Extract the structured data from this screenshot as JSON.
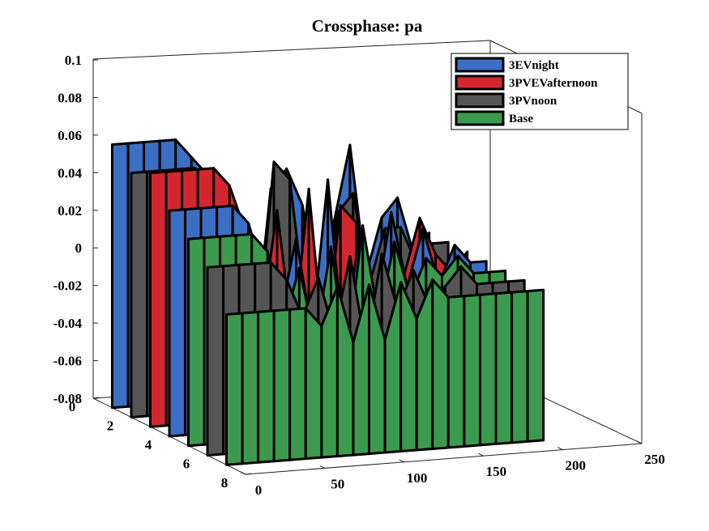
{
  "chart_data": {
    "type": "3d-waterfall",
    "title": "Crossphase: pa",
    "xlabel": "",
    "ylabel": "",
    "zlabel": "",
    "x_ticks": [
      "0",
      "50",
      "100",
      "150",
      "200",
      "250"
    ],
    "y_ticks": [
      "0",
      "2",
      "4",
      "6",
      "8"
    ],
    "z_ticks": [
      "0.1",
      "0.08",
      "0.06",
      "0.04",
      "0.02",
      "0",
      "-0.02",
      "-0.04",
      "-0.06",
      "-0.08"
    ],
    "xlim": [
      0,
      250
    ],
    "ylim": [
      0,
      8
    ],
    "zlim": [
      -0.08,
      0.1
    ],
    "grid": false,
    "legend_position": "top-right",
    "series": [
      {
        "name": "3EVnight",
        "color": "#3a6fc4"
      },
      {
        "name": "3PVEVafternoon",
        "color": "#d3272f"
      },
      {
        "name": "3PVnoon",
        "color": "#555555"
      },
      {
        "name": "Base",
        "color": "#3c9a4e"
      }
    ],
    "x": [
      0,
      10,
      20,
      30,
      40,
      50,
      60,
      70,
      80,
      90,
      100,
      110,
      120,
      130,
      140,
      150,
      160,
      170,
      180,
      190,
      200
    ],
    "slices": [
      {
        "y": 1,
        "series": "3EVnight",
        "z": [
          0.06,
          0.06,
          0.06,
          0.06,
          0.06,
          0.05,
          0.04,
          0.02,
          -0.02,
          -0.05,
          0.03,
          0.04,
          0.02,
          -0.03,
          0.01,
          0.05,
          -0.02,
          0.01,
          0.02,
          -0.01,
          0.0
        ]
      },
      {
        "y": 2,
        "series": "3PVnoon",
        "z": [
          0.05,
          0.05,
          0.05,
          0.05,
          0.05,
          0.04,
          0.03,
          0.01,
          -0.04,
          0.05,
          0.04,
          -0.03,
          -0.05,
          0.02,
          0.03,
          -0.02,
          0.01,
          0.01,
          -0.01,
          0.0,
          0.0
        ]
      },
      {
        "y": 3,
        "series": "3PVEVafternoon",
        "z": [
          0.055,
          0.055,
          0.055,
          0.055,
          0.055,
          0.045,
          0.02,
          -0.03,
          0.03,
          -0.04,
          0.04,
          -0.05,
          0.03,
          0.02,
          -0.03,
          0.01,
          -0.01,
          0.02,
          0.0,
          -0.01,
          0.0
        ]
      },
      {
        "y": 4,
        "series": "3EVnight",
        "z": [
          0.04,
          0.04,
          0.04,
          0.04,
          0.04,
          0.03,
          0.0,
          -0.02,
          0.02,
          -0.03,
          0.05,
          -0.04,
          0.02,
          -0.02,
          0.03,
          -0.01,
          0.02,
          -0.01,
          0.01,
          0.0,
          0.0
        ]
      },
      {
        "y": 5,
        "series": "Base",
        "z": [
          0.03,
          0.03,
          0.03,
          0.03,
          0.03,
          0.02,
          -0.02,
          0.01,
          -0.03,
          0.02,
          -0.04,
          0.03,
          -0.02,
          0.02,
          -0.01,
          0.01,
          0.0,
          0.01,
          0.0,
          0.0,
          0.0
        ]
      },
      {
        "y": 6,
        "series": "3PVnoon",
        "z": [
          0.02,
          0.02,
          0.02,
          0.02,
          0.02,
          0.01,
          -0.01,
          0.01,
          -0.02,
          0.02,
          -0.03,
          0.02,
          -0.01,
          0.01,
          -0.01,
          0.0,
          0.01,
          0.0,
          0.0,
          0.0,
          0.0
        ]
      },
      {
        "y": 7,
        "series": "Base",
        "z": [
          0.0,
          0.0,
          0.0,
          0.0,
          0.0,
          0.0,
          -0.01,
          0.01,
          -0.02,
          0.01,
          -0.02,
          0.01,
          -0.01,
          0.01,
          0.0,
          0.0,
          0.0,
          0.0,
          0.0,
          0.0,
          0.0
        ]
      }
    ]
  }
}
